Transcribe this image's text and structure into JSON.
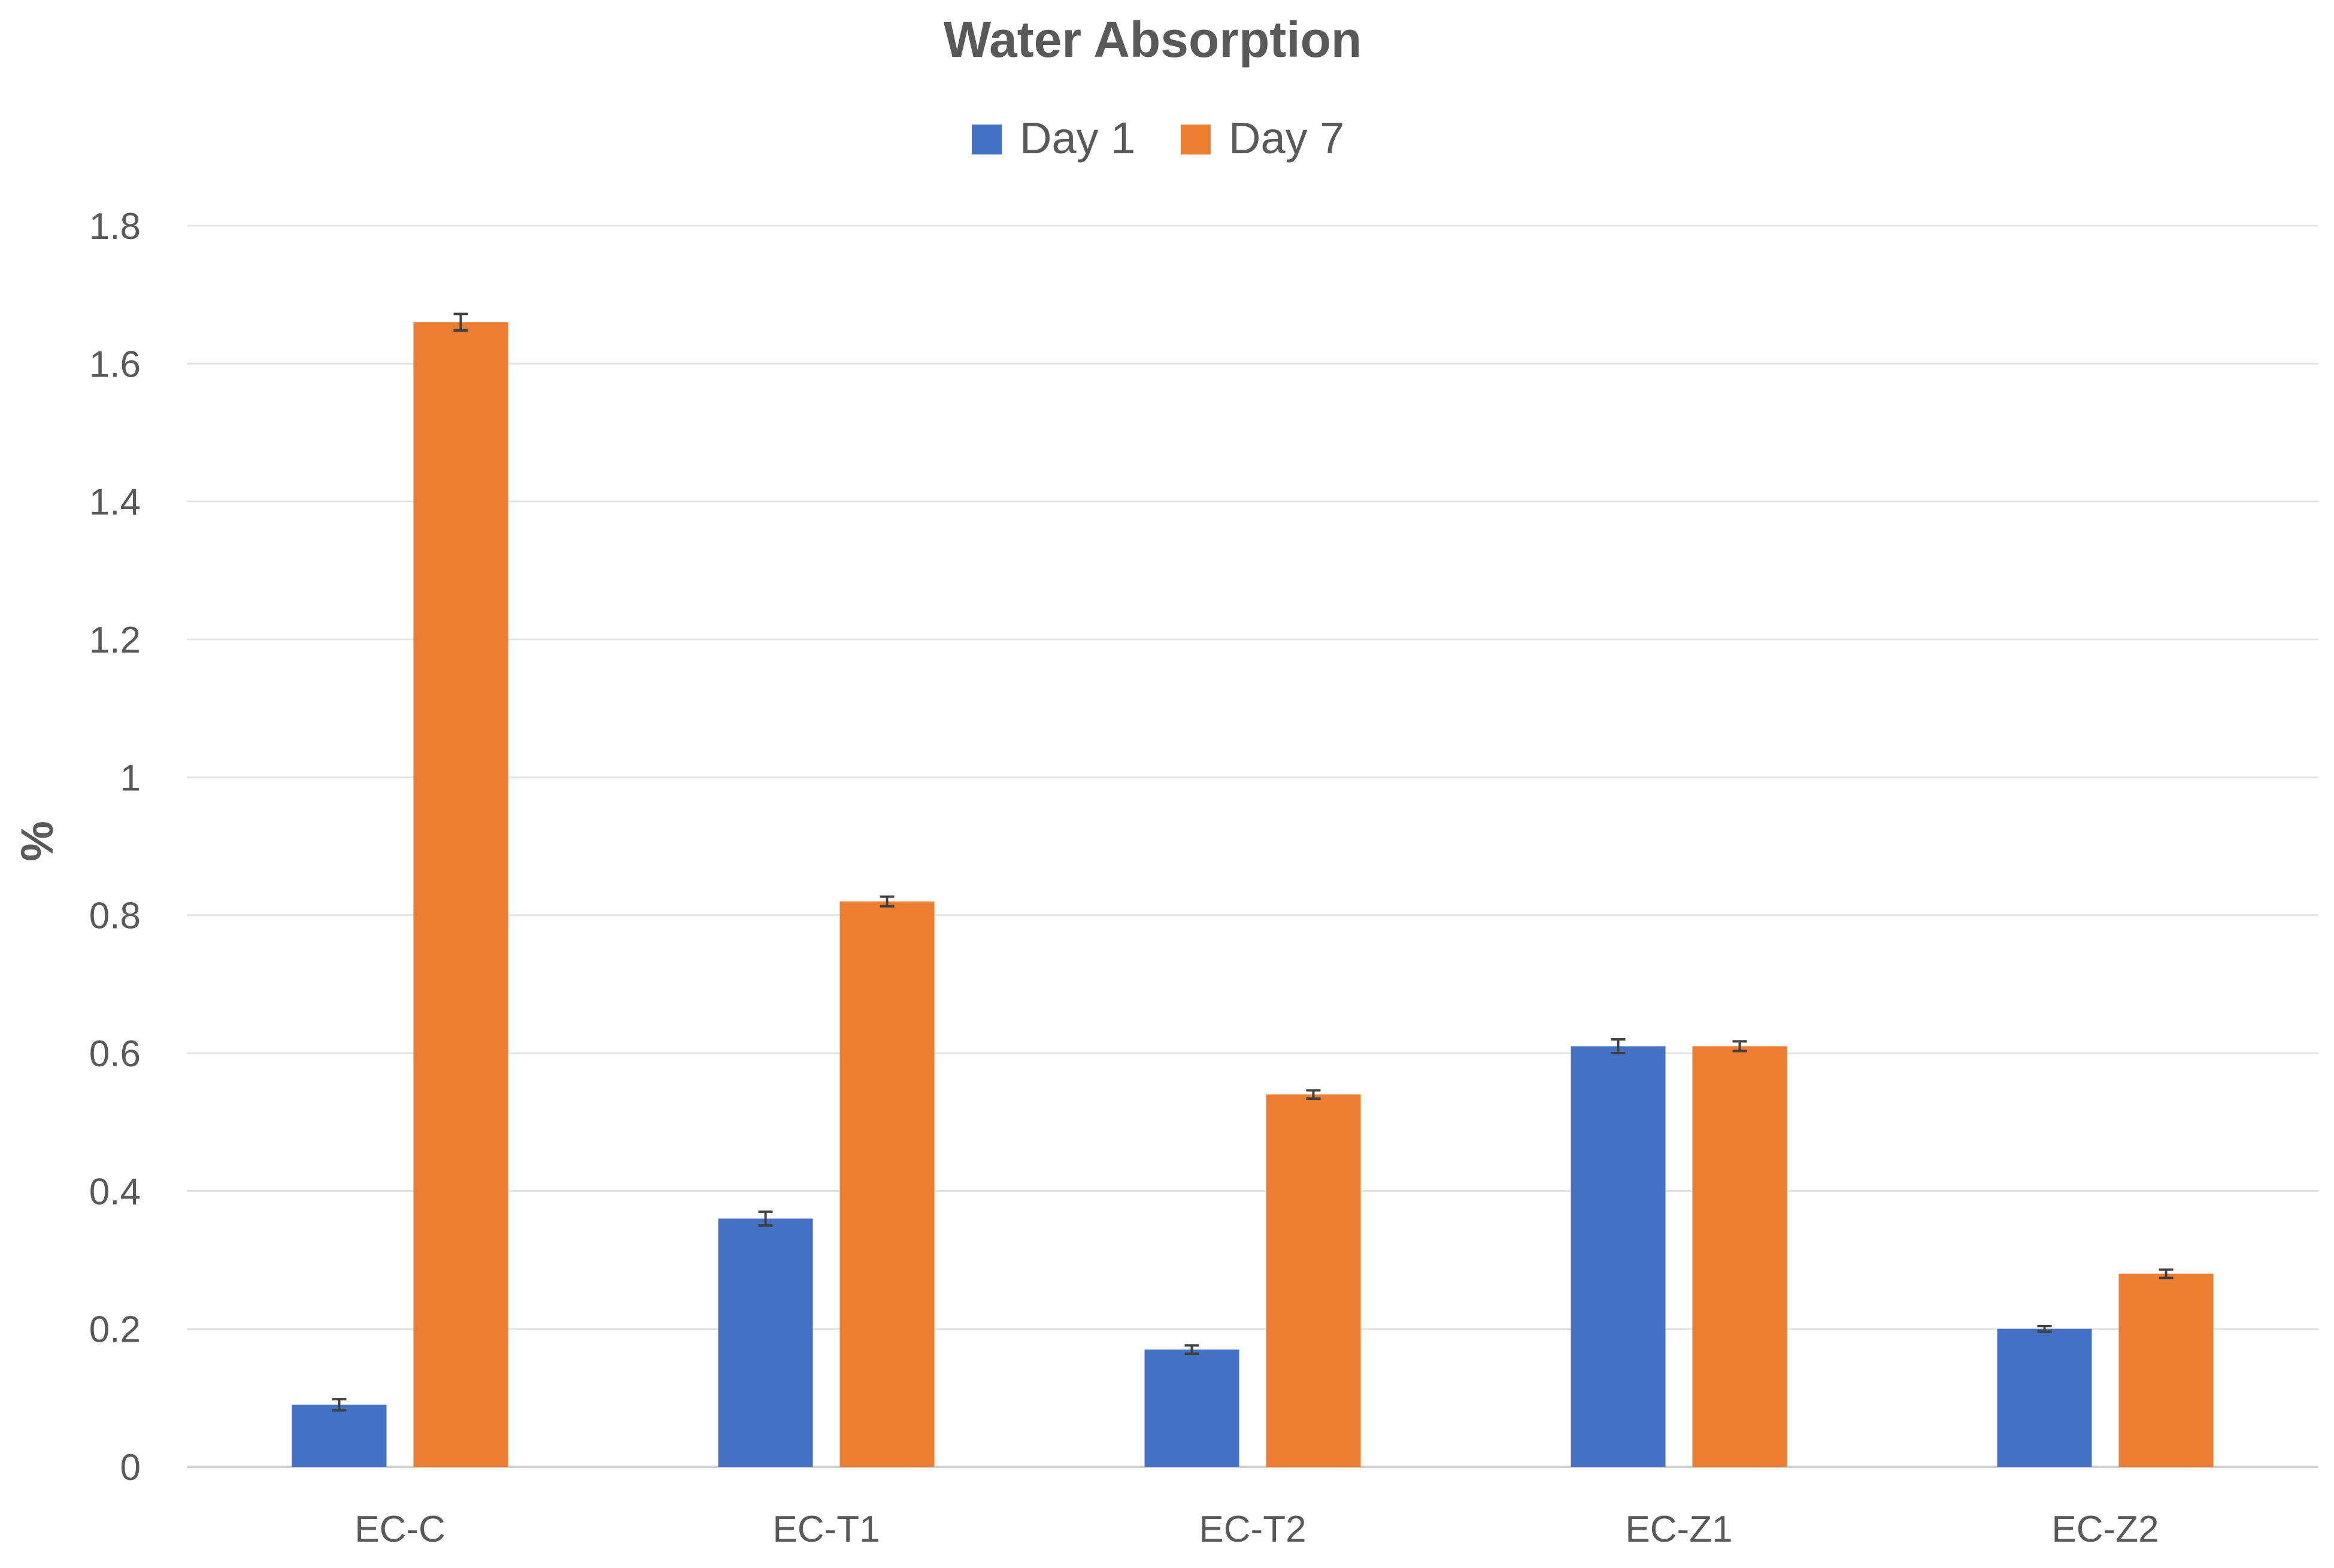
{
  "chart_data": {
    "type": "bar",
    "title": "Water Absorption",
    "xlabel": "",
    "ylabel": "%",
    "ylim": [
      0,
      1.8
    ],
    "yticks": [
      0,
      0.2,
      0.4,
      0.6,
      0.8,
      1,
      1.2,
      1.4,
      1.6,
      1.8
    ],
    "ytick_labels": [
      "0",
      "0.2",
      "0.4",
      "0.6",
      "0.8",
      "1",
      "1.2",
      "1.4",
      "1.6",
      "1.8"
    ],
    "grid": true,
    "legend_position": "top-center",
    "categories": [
      "EC-C",
      "EC-T1",
      "EC-T2",
      "EC-Z1",
      "EC-Z2"
    ],
    "series": [
      {
        "name": "Day 1",
        "color": "#4472C4",
        "values": [
          0.09,
          0.36,
          0.17,
          0.61,
          0.2
        ],
        "errors": [
          0.008,
          0.01,
          0.006,
          0.01,
          0.004
        ]
      },
      {
        "name": "Day 7",
        "color": "#ED7D31",
        "values": [
          1.66,
          0.82,
          0.54,
          0.61,
          0.28
        ],
        "errors": [
          0.012,
          0.007,
          0.006,
          0.007,
          0.006
        ]
      }
    ]
  }
}
